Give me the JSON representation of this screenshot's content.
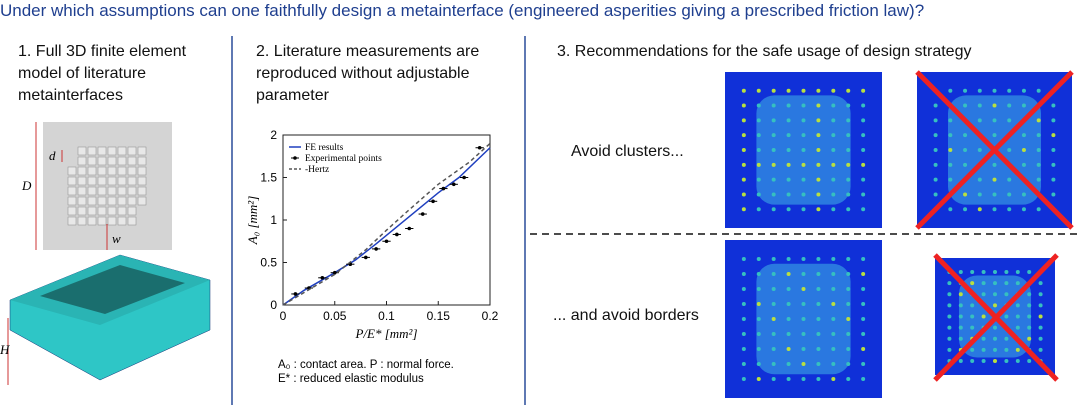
{
  "header": {
    "title": "Under which assumptions can one faithfully design a metainterface (engineered asperities giving a prescribed friction law)?"
  },
  "panels": [
    {
      "heading": [
        "1. Full 3D finite element",
        "model of literature",
        "metainterfaces"
      ],
      "labels": [
        "d",
        "D",
        "w",
        "H"
      ]
    },
    {
      "heading": [
        "2. Literature measurements are",
        "reproduced without adjustable",
        "parameter"
      ],
      "caption": [
        "A₀ : contact area. P : normal force.",
        "E* : reduced elastic modulus"
      ]
    },
    {
      "heading": [
        "3. Recommendations for the safe usage of design strategy"
      ],
      "notes": [
        "Avoid clusters...",
        "... and avoid borders"
      ]
    }
  ],
  "chart_data": {
    "type": "line",
    "xlabel": "P/E* [mm²]",
    "ylabel": "A₀ [mm²]",
    "xlim": [
      0,
      0.2
    ],
    "ylim": [
      0,
      2
    ],
    "xticks": [
      0,
      0.05,
      0.1,
      0.15,
      0.2
    ],
    "yticks": [
      0,
      0.5,
      1,
      1.5,
      2
    ],
    "series": [
      {
        "name": "FE results",
        "color": "#1f3fbf",
        "x": [
          0,
          0.02,
          0.05,
          0.07,
          0.09,
          0.11,
          0.13,
          0.15,
          0.17,
          0.2
        ],
        "values": [
          0,
          0.17,
          0.38,
          0.53,
          0.72,
          0.92,
          1.12,
          1.32,
          1.5,
          1.85
        ]
      },
      {
        "name": "Experimental points",
        "color": "#000000",
        "type": "errorbar",
        "x": [
          0.012,
          0.025,
          0.038,
          0.05,
          0.065,
          0.08,
          0.09,
          0.1,
          0.11,
          0.122,
          0.135,
          0.145,
          0.155,
          0.165,
          0.175,
          0.19
        ],
        "values": [
          0.13,
          0.2,
          0.32,
          0.38,
          0.48,
          0.56,
          0.66,
          0.75,
          0.83,
          0.9,
          1.07,
          1.22,
          1.37,
          1.42,
          1.5,
          1.85
        ],
        "xerr": [
          0.004,
          0.004,
          0.004,
          0.004,
          0.004,
          0.004,
          0.004,
          0.004,
          0.004,
          0.004,
          0.004,
          0.004,
          0.004,
          0.004,
          0.004,
          0.004
        ]
      },
      {
        "name": "-Hertz",
        "color": "#555555",
        "dash": true,
        "x": [
          0,
          0.05,
          0.08,
          0.1,
          0.12,
          0.15,
          0.18,
          0.2
        ],
        "values": [
          0,
          0.36,
          0.65,
          0.88,
          1.1,
          1.42,
          1.68,
          1.9
        ]
      }
    ]
  }
}
